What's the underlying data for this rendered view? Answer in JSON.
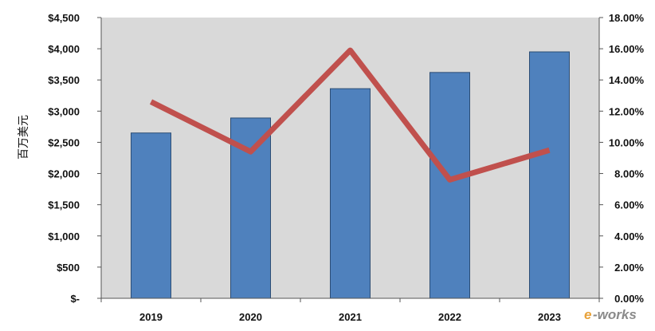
{
  "chart_data": {
    "type": "bar",
    "categories": [
      "2019",
      "2020",
      "2021",
      "2022",
      "2023"
    ],
    "ylabel": "百万美元",
    "ylim": [
      0,
      4500
    ],
    "y2lim": [
      0,
      0.18
    ],
    "grid": false,
    "series": [
      {
        "axis": "left",
        "type": "bar",
        "values": [
          2650,
          2890,
          3360,
          3620,
          3950
        ],
        "color": "#4f81bd"
      },
      {
        "axis": "right",
        "type": "line",
        "values": [
          0.126,
          0.094,
          0.159,
          0.076,
          0.095
        ],
        "color": "#c0504d"
      }
    ],
    "y_ticks": [
      "$-",
      "$500",
      "$1,000",
      "$1,500",
      "$2,000",
      "$2,500",
      "$3,000",
      "$3,500",
      "$4,000",
      "$4,500"
    ],
    "y2_ticks": [
      "0.00%",
      "2.00%",
      "4.00%",
      "6.00%",
      "8.00%",
      "10.00%",
      "12.00%",
      "14.00%",
      "16.00%",
      "18.00%"
    ],
    "plot_background": "#d9d9d9"
  },
  "watermark": {
    "e": "e",
    "rest": "-works"
  }
}
